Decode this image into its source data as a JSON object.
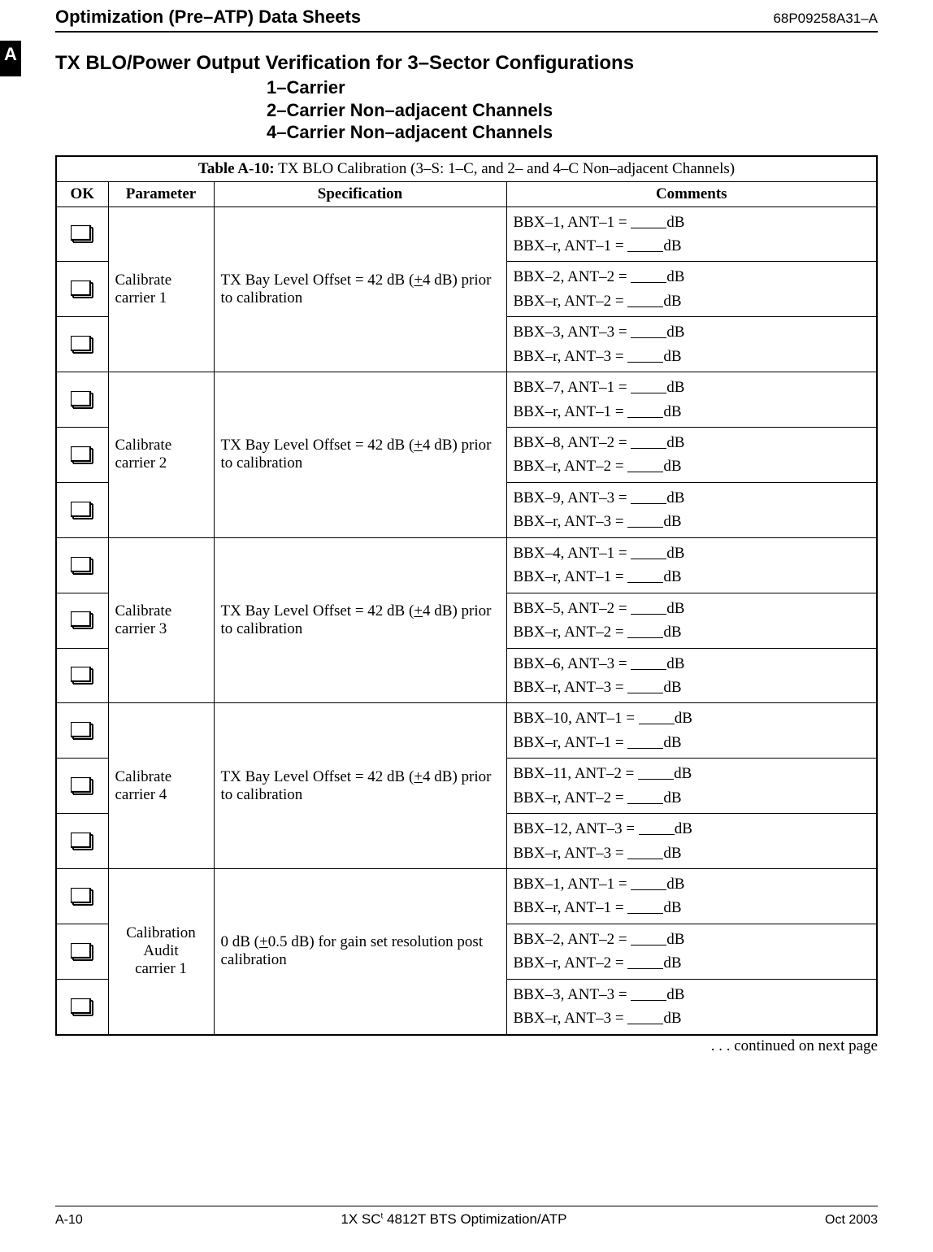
{
  "sideTab": "A",
  "header": {
    "title": "Optimization (Pre–ATP) Data Sheets",
    "docId": "68P09258A31–A"
  },
  "sectionTitle": "TX BLO/Power Output Verification for 3–Sector Configurations",
  "subTitles": [
    "1–Carrier",
    "2–Carrier Non–adjacent Channels",
    "4–Carrier Non–adjacent Channels"
  ],
  "table": {
    "captionLabel": "Table A-10:",
    "captionText": " TX BLO Calibration (3–S: 1–C, and 2– and 4–C Non–adjacent Channels)",
    "headers": {
      "ok": "OK",
      "param": "Parameter",
      "spec": "Specification",
      "comm": "Comments"
    },
    "specTxBay": {
      "prefix": "TX Bay Level Offset = 42 dB (",
      "pm": "+",
      "mid": "4 dB) prior to calibration"
    },
    "specAudit": {
      "prefix": "0 dB (",
      "pm": "+",
      "mid": "0.5 dB) for gain set resolution post calibration"
    },
    "groups": [
      {
        "param": "Calibrate carrier 1",
        "specKey": "tx",
        "rows": [
          {
            "a": "BBX–1, ANT–1 = ",
            "b": "BBX–r, ANT–1 = "
          },
          {
            "a": "BBX–2, ANT–2 = ",
            "b": "BBX–r, ANT–2 = "
          },
          {
            "a": "BBX–3, ANT–3 = ",
            "b": "BBX–r, ANT–3 = "
          }
        ]
      },
      {
        "param": "Calibrate carrier 2",
        "specKey": "tx",
        "rows": [
          {
            "a": "BBX–7, ANT–1 = ",
            "b": "BBX–r, ANT–1 = "
          },
          {
            "a": "BBX–8, ANT–2 = ",
            "b": "BBX–r, ANT–2 = "
          },
          {
            "a": "BBX–9, ANT–3 = ",
            "b": "BBX–r, ANT–3 = "
          }
        ]
      },
      {
        "param": "Calibrate carrier 3",
        "specKey": "tx",
        "rows": [
          {
            "a": "BBX–4, ANT–1 = ",
            "b": "BBX–r, ANT–1 = "
          },
          {
            "a": "BBX–5, ANT–2 = ",
            "b": "BBX–r, ANT–2 = "
          },
          {
            "a": "BBX–6, ANT–3 = ",
            "b": "BBX–r, ANT–3 = "
          }
        ]
      },
      {
        "param": "Calibrate carrier 4",
        "specKey": "tx",
        "rows": [
          {
            "a": "BBX–10, ANT–1 = ",
            "b": "BBX–r, ANT–1 = "
          },
          {
            "a": "BBX–11, ANT–2 = ",
            "b": "BBX–r, ANT–2 = "
          },
          {
            "a": "BBX–12, ANT–3 = ",
            "b": "BBX–r, ANT–3 = "
          }
        ]
      },
      {
        "param": "Calibration Audit carrier 1",
        "specKey": "audit",
        "rows": [
          {
            "a": "BBX–1, ANT–1 = ",
            "b": "BBX–r, ANT–1 = "
          },
          {
            "a": "BBX–2, ANT–2 = ",
            "b": "BBX–r, ANT–2 = "
          },
          {
            "a": "BBX–3, ANT–3 = ",
            "b": "BBX–r, ANT–3 = "
          }
        ]
      }
    ],
    "dbSuffix": "dB"
  },
  "continued": ". . . continued on next page",
  "footer": {
    "pageNum": "A-10",
    "centerPrefix": "1X SC",
    "tm": "t",
    "centerSuffix": " 4812T BTS Optimization/ATP",
    "date": "Oct 2003"
  }
}
